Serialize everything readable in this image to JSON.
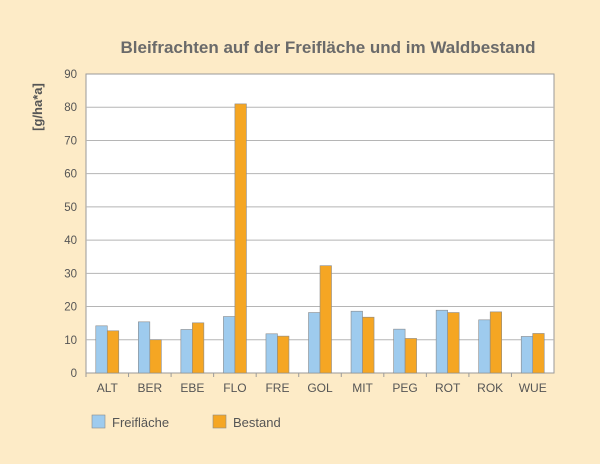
{
  "chart_data": {
    "type": "bar",
    "title": "Bleifrachten auf der Freifläche und im Waldbestand",
    "ylabel": "[g/ha*a]",
    "xlabel": "",
    "ylim": [
      0,
      90
    ],
    "yticks": [
      0,
      10,
      20,
      30,
      40,
      50,
      60,
      70,
      80,
      90
    ],
    "grid": true,
    "legend_position": "bottom-left",
    "categories": [
      "ALT",
      "BER",
      "EBE",
      "FLO",
      "FRE",
      "GOL",
      "MIT",
      "PEG",
      "ROT",
      "ROK",
      "WUE"
    ],
    "series": [
      {
        "name": "Freifläche",
        "color": "#9ecbee",
        "values": [
          14.2,
          15.4,
          13.1,
          17.0,
          11.8,
          18.2,
          18.6,
          13.2,
          18.9,
          16.0,
          11.0
        ]
      },
      {
        "name": "Bestand",
        "color": "#f5a623",
        "values": [
          12.7,
          10.0,
          15.1,
          81.0,
          11.1,
          32.3,
          16.8,
          10.4,
          18.2,
          18.4,
          11.9
        ]
      }
    ]
  }
}
